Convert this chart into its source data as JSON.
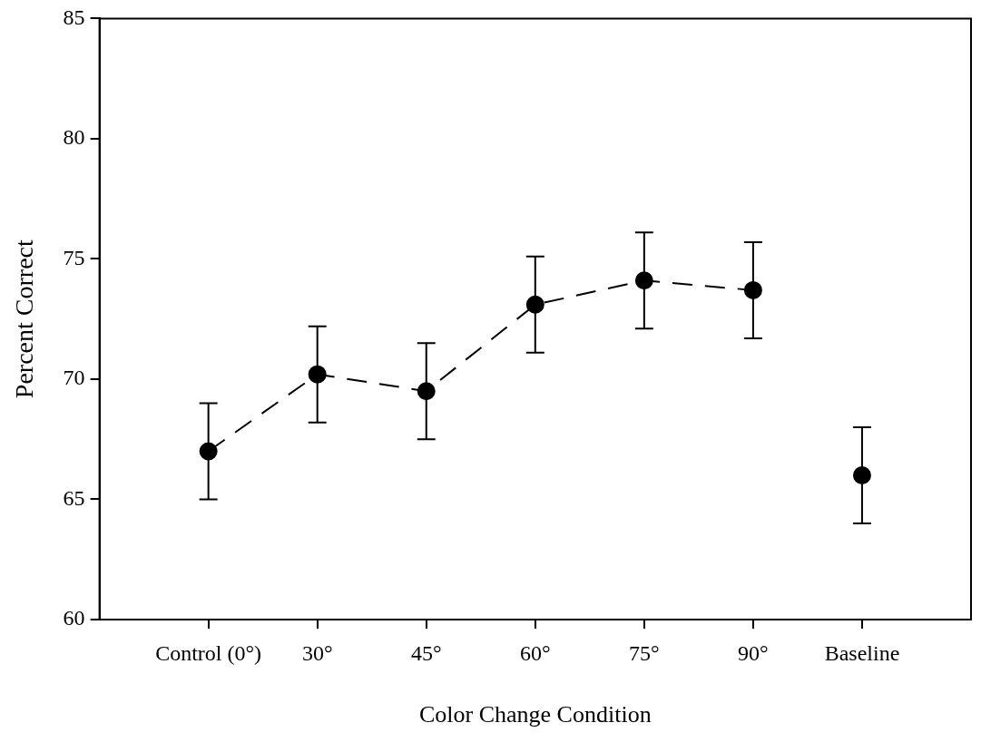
{
  "chart_data": {
    "type": "line",
    "xlabel": "Color Change Condition",
    "ylabel": "Percent Correct",
    "categories": [
      "Control (0°)",
      "30°",
      "45°",
      "60°",
      "75°",
      "90°",
      "Baseline"
    ],
    "series": [
      {
        "type": "line",
        "color": "#000000",
        "values": [
          67.0,
          70.2,
          69.5,
          73.1,
          74.1,
          73.7,
          null
        ],
        "errors": [
          2,
          2,
          2,
          2,
          2,
          2,
          null
        ]
      },
      {
        "type": "scatter",
        "color": "#000000",
        "values": [
          null,
          null,
          null,
          null,
          null,
          null,
          66.0
        ],
        "errors": [
          null,
          null,
          null,
          null,
          null,
          null,
          2
        ]
      }
    ],
    "ylim": [
      60,
      85
    ],
    "yticks": [
      60,
      65,
      70,
      75,
      80,
      85
    ],
    "marker": "circle",
    "line_style": "dashed",
    "legend": false
  }
}
